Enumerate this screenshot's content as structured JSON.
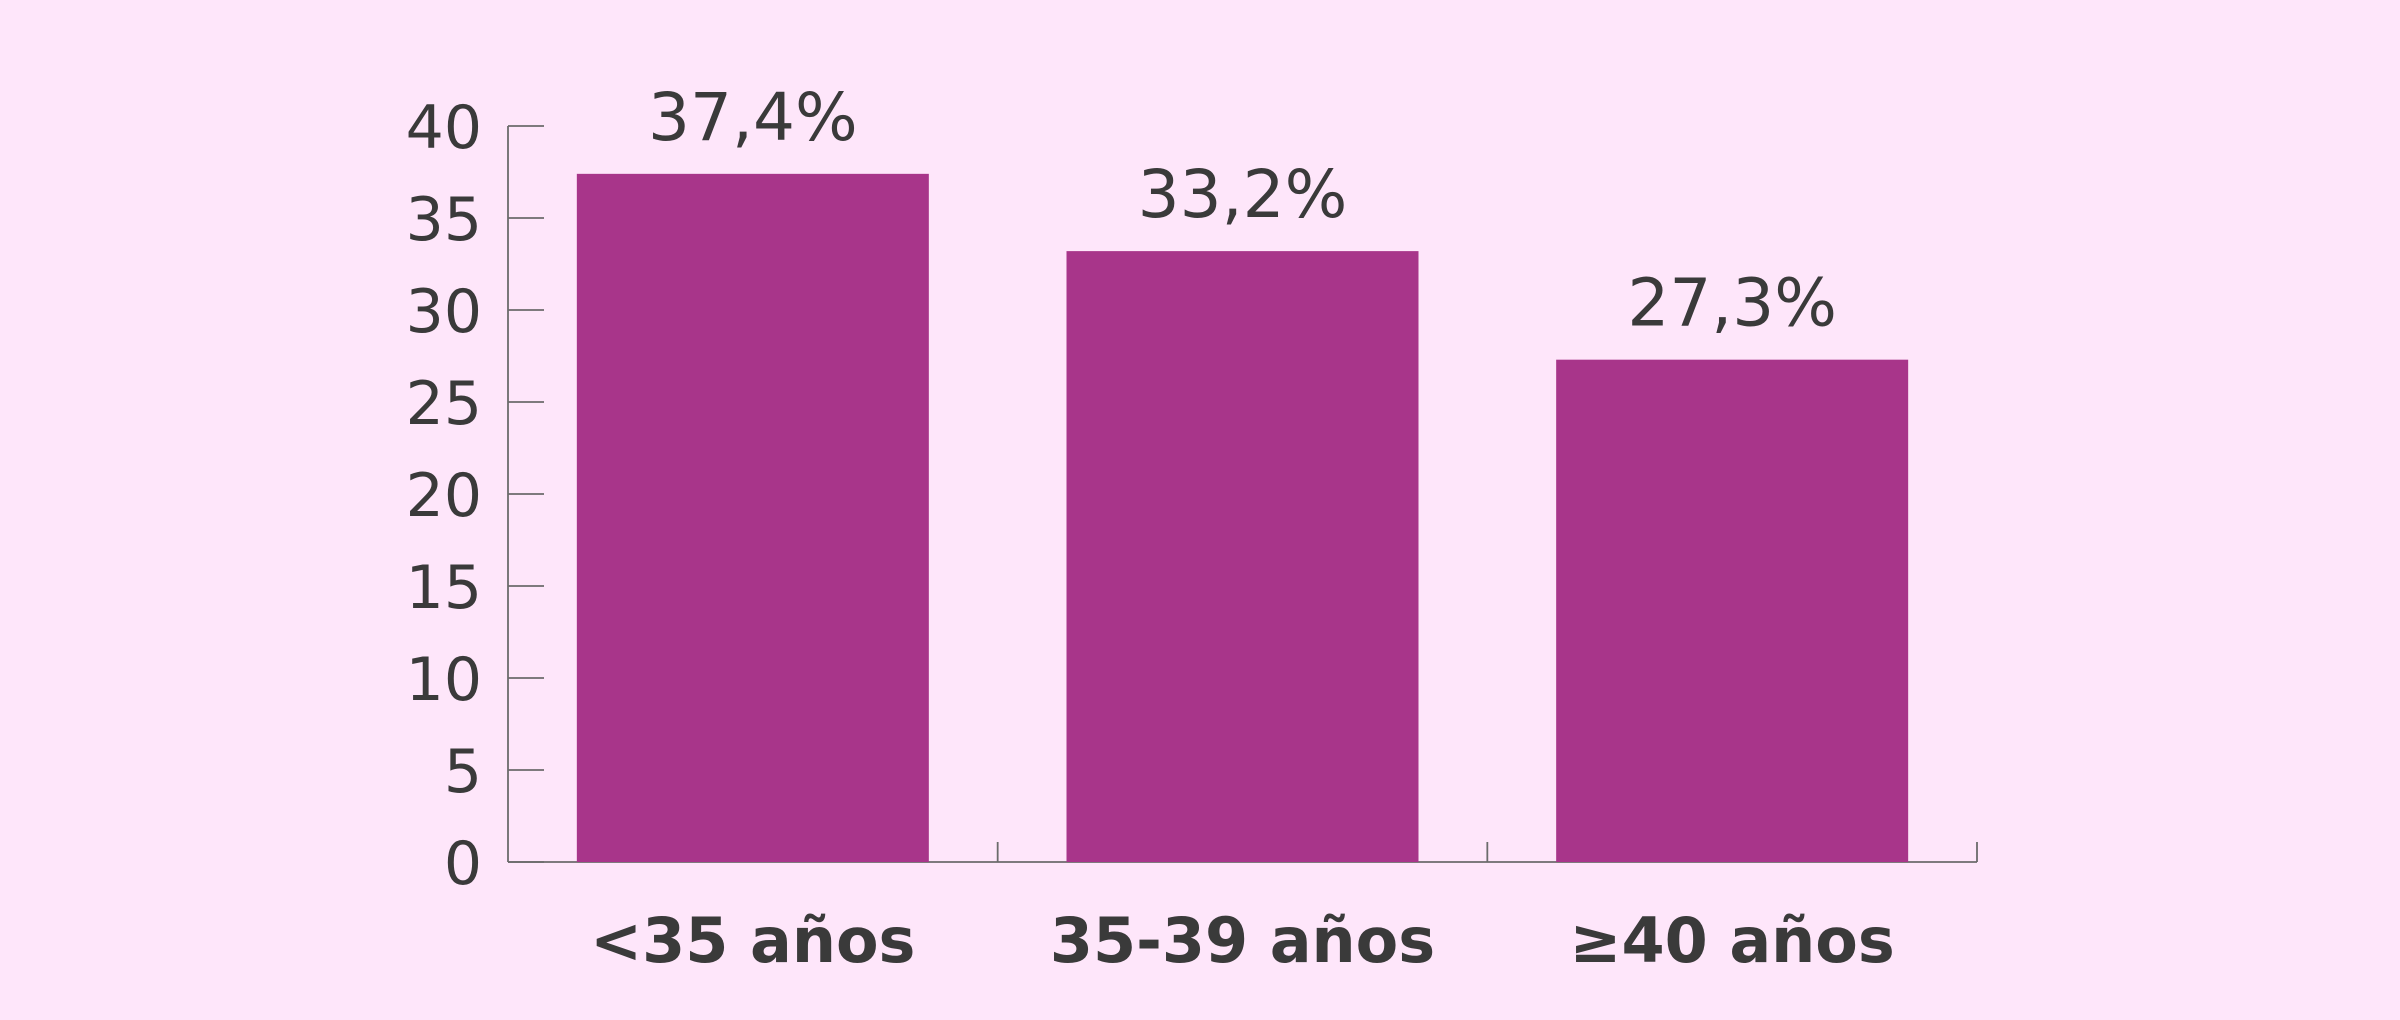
{
  "chart_data": {
    "type": "bar",
    "categories": [
      "<35 años",
      "35-39 años",
      "≥40 años"
    ],
    "values": [
      37.4,
      33.2,
      27.3
    ],
    "data_labels": [
      "37,4%",
      "33,2%",
      "27,3%"
    ],
    "yticks": [
      "0",
      "5",
      "10",
      "15",
      "20",
      "25",
      "30",
      "35",
      "40"
    ],
    "ylim": [
      0,
      40
    ],
    "grid": false,
    "bar_color": "#a8358a",
    "background_color": "#fee6fa",
    "text_color": "#3a3a3a"
  }
}
